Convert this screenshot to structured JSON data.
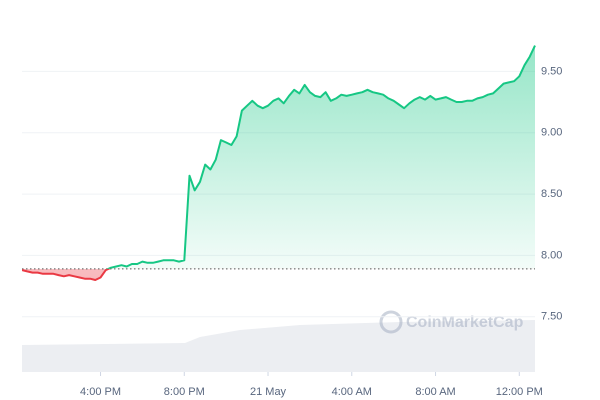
{
  "chart_data": {
    "type": "baseline-line",
    "watermark": "CoinMarketCap",
    "x": [
      0,
      1,
      2,
      3,
      4,
      5,
      6,
      7,
      8,
      9,
      10,
      11,
      12,
      13,
      14,
      15,
      16,
      17,
      18,
      19,
      20,
      21,
      22,
      23,
      24,
      25,
      26,
      27,
      28,
      29,
      30,
      31,
      32,
      33,
      34,
      35,
      36,
      37,
      38,
      39,
      40,
      41,
      42,
      43,
      44,
      45,
      46,
      47,
      48,
      49,
      50,
      51,
      52,
      53,
      54,
      55,
      56,
      57,
      58,
      59,
      60,
      61,
      62,
      63,
      64,
      65,
      66,
      67,
      68,
      69,
      70,
      71,
      72,
      73,
      74,
      75,
      76,
      77,
      78,
      79,
      80,
      81,
      82,
      83,
      84,
      85,
      86,
      87,
      88,
      89,
      90,
      91,
      92,
      93,
      94,
      95,
      96,
      97,
      98
    ],
    "values": [
      7.88,
      7.87,
      7.86,
      7.86,
      7.85,
      7.85,
      7.85,
      7.84,
      7.83,
      7.84,
      7.83,
      7.82,
      7.81,
      7.81,
      7.8,
      7.82,
      7.88,
      7.9,
      7.91,
      7.92,
      7.91,
      7.93,
      7.93,
      7.95,
      7.94,
      7.94,
      7.95,
      7.96,
      7.96,
      7.96,
      7.95,
      7.96,
      8.65,
      8.53,
      8.6,
      8.74,
      8.7,
      8.78,
      8.94,
      8.92,
      8.9,
      8.97,
      9.18,
      9.22,
      9.26,
      9.22,
      9.2,
      9.22,
      9.26,
      9.28,
      9.24,
      9.3,
      9.35,
      9.32,
      9.39,
      9.33,
      9.3,
      9.29,
      9.33,
      9.26,
      9.28,
      9.31,
      9.3,
      9.31,
      9.32,
      9.33,
      9.35,
      9.33,
      9.32,
      9.31,
      9.28,
      9.26,
      9.23,
      9.2,
      9.24,
      9.27,
      9.29,
      9.27,
      9.3,
      9.27,
      9.28,
      9.29,
      9.27,
      9.25,
      9.25,
      9.26,
      9.26,
      9.28,
      9.29,
      9.31,
      9.32,
      9.36,
      9.4,
      9.41,
      9.42,
      9.46,
      9.55,
      9.62,
      9.71
    ],
    "baseline": 7.89,
    "up_color": "#16c784",
    "down_color": "#ea3943",
    "xlim": [
      0,
      98
    ],
    "xticks": [
      {
        "value": 15,
        "label": "4:00 PM"
      },
      {
        "value": 31,
        "label": "8:00 PM"
      },
      {
        "value": 47,
        "label": "21 May"
      },
      {
        "value": 63,
        "label": "4:00 AM"
      },
      {
        "value": 79,
        "label": "8:00 AM"
      },
      {
        "value": 95,
        "label": "12:00 PM"
      }
    ],
    "ylim": [
      7.05,
      10.0
    ],
    "yticks": [
      {
        "value": 7.5,
        "label": "7.50"
      },
      {
        "value": 8.0,
        "label": "8.00"
      },
      {
        "value": 8.5,
        "label": "8.50"
      },
      {
        "value": 9.0,
        "label": "9.00"
      },
      {
        "value": 9.5,
        "label": "9.50"
      }
    ],
    "grid": true
  }
}
